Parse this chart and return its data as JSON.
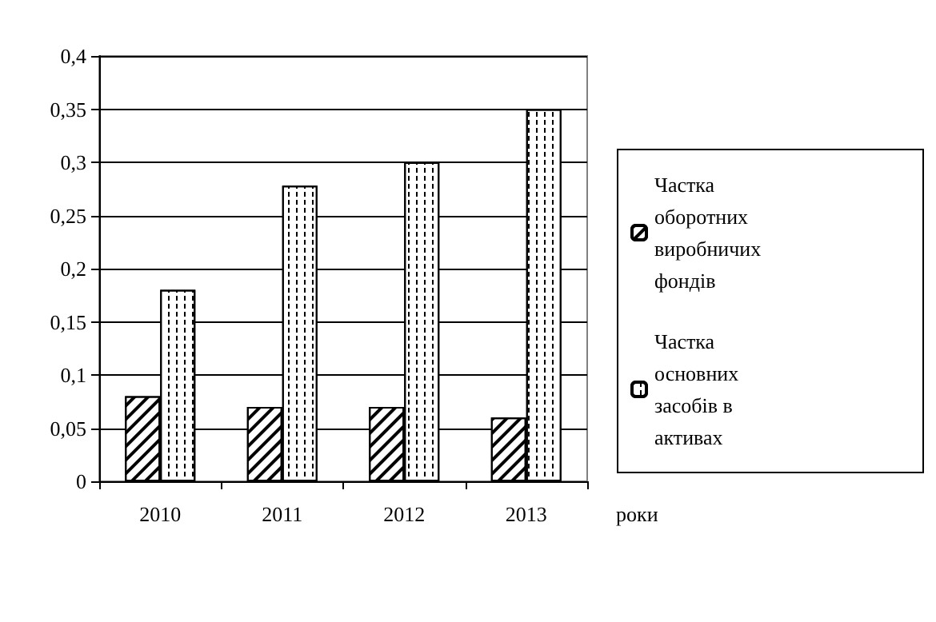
{
  "chart_data": {
    "type": "bar",
    "xlabel": "роки",
    "categories": [
      "2010",
      "2011",
      "2012",
      "2013"
    ],
    "series": [
      {
        "name": "Частка оборотних виробничих фондів",
        "color": "#000000",
        "values": [
          0.08,
          0.07,
          0.07,
          0.06
        ]
      },
      {
        "name": "Частка основних засобів в активах",
        "color": "#000000",
        "values": [
          0.18,
          0.278,
          0.3,
          0.35
        ]
      }
    ],
    "ylim": [
      0,
      0.4
    ],
    "yticks": [
      {
        "value": 0,
        "label": "0"
      },
      {
        "value": 0.05,
        "label": "0,05"
      },
      {
        "value": 0.1,
        "label": "0,1"
      },
      {
        "value": 0.15,
        "label": "0,15"
      },
      {
        "value": 0.2,
        "label": "0,2"
      },
      {
        "value": 0.25,
        "label": "0,25"
      },
      {
        "value": 0.3,
        "label": "0,3"
      },
      {
        "value": 0.35,
        "label": "0,35"
      },
      {
        "value": 0.4,
        "label": "0,4"
      }
    ],
    "grid": "y",
    "legend": "right"
  }
}
